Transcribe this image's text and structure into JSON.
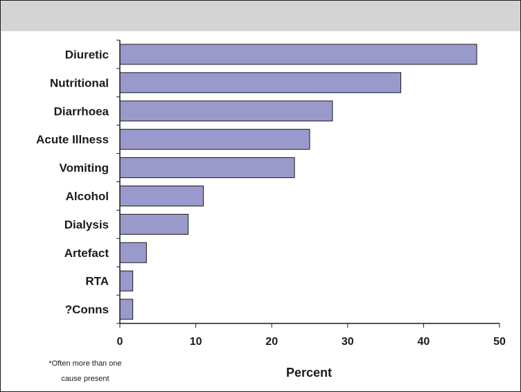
{
  "chart_data": {
    "type": "bar",
    "orientation": "horizontal",
    "categories": [
      "Diuretic",
      "Nutritional",
      "Diarrhoea",
      "Acute Illness",
      "Vomiting",
      "Alcohol",
      "Dialysis",
      "Artefact",
      "RTA",
      "?Conns"
    ],
    "values": [
      47,
      37,
      28,
      25,
      23,
      11,
      9,
      3.5,
      1.7,
      1.7
    ],
    "xlabel": "Percent",
    "xlim": [
      0,
      50
    ],
    "xticks": [
      "0",
      "10",
      "20",
      "30",
      "40",
      "50"
    ],
    "grid": false,
    "bar_color": "#9999cc",
    "bar_edge_color": "#1a1a1a"
  },
  "footnote": {
    "line1": "*Often more than one",
    "line2": "cause present"
  }
}
